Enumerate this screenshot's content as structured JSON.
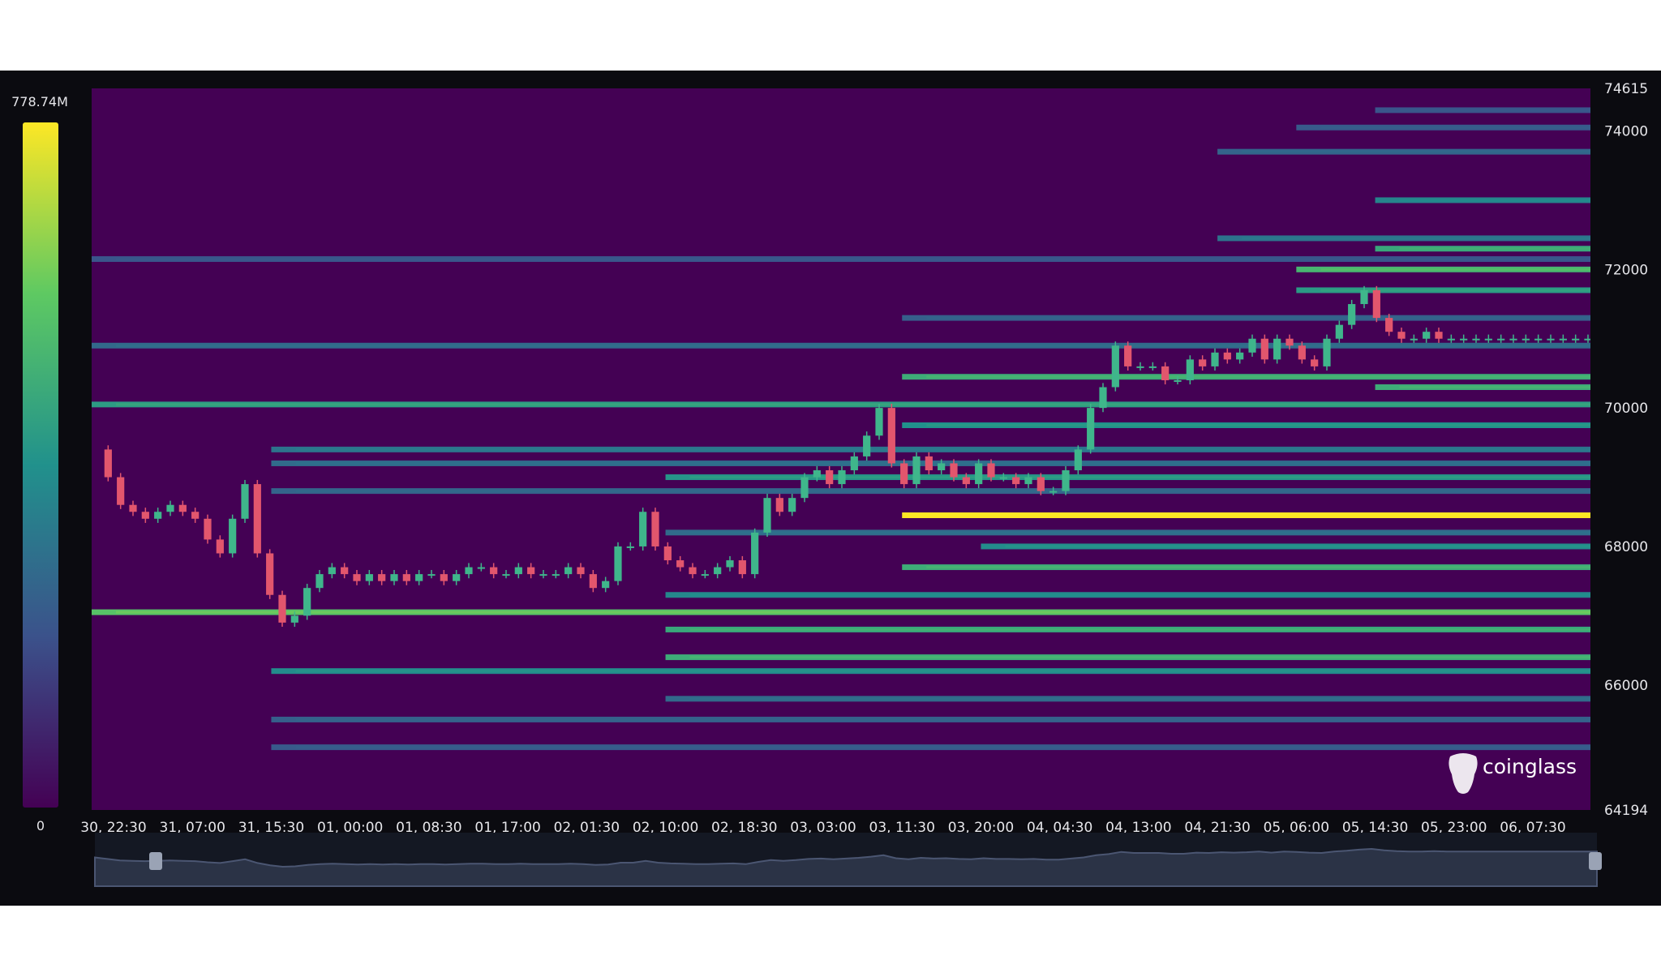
{
  "chart_data": {
    "type": "heatmap",
    "title": "",
    "subtitle": "",
    "xlabel": "",
    "ylabel": "",
    "ylim": [
      64194,
      74615
    ],
    "x_ticks": [
      "30, 22:30",
      "31, 07:00",
      "31, 15:30",
      "01, 00:00",
      "01, 08:30",
      "01, 17:00",
      "02, 01:30",
      "02, 10:00",
      "02, 18:30",
      "03, 03:00",
      "03, 11:30",
      "03, 20:00",
      "04, 04:30",
      "04, 13:00",
      "04, 21:30",
      "05, 06:00",
      "05, 14:30",
      "05, 23:00",
      "06, 07:30"
    ],
    "y_ticks": [
      64194,
      66000,
      68000,
      70000,
      72000,
      74000,
      74615
    ],
    "colorscale": {
      "max_label": "778.74M",
      "min_label": "0",
      "colors": [
        "#440154",
        "#3b528b",
        "#21918c",
        "#5ec962",
        "#fde725"
      ]
    },
    "price_series": [
      69400,
      69000,
      68600,
      68500,
      68400,
      68500,
      68600,
      68500,
      68400,
      68100,
      67900,
      68400,
      68900,
      67900,
      67300,
      66900,
      67000,
      67400,
      67600,
      67700,
      67600,
      67500,
      67600,
      67500,
      67600,
      67500,
      67600,
      67600,
      67500,
      67600,
      67700,
      67700,
      67600,
      67600,
      67700,
      67600,
      67600,
      67600,
      67700,
      67600,
      67400,
      67500,
      68000,
      68000,
      68500,
      68000,
      67800,
      67700,
      67600,
      67600,
      67700,
      67800,
      67600,
      68200,
      68700,
      68500,
      68700,
      69000,
      69100,
      68900,
      69100,
      69300,
      69600,
      70000,
      69200,
      68900,
      69300,
      69100,
      69200,
      69000,
      68900,
      69200,
      69000,
      69000,
      68900,
      69000,
      68800,
      68800,
      69100,
      69400,
      70000,
      70300,
      70900,
      70600,
      70600,
      70600,
      70400,
      70400,
      70700,
      70600,
      70800,
      70700,
      70800,
      71000,
      70700,
      71000,
      70900,
      70700,
      70600,
      71000,
      71200,
      71500,
      71700,
      71300,
      71100,
      71000,
      71000,
      71100,
      71000,
      71000,
      71000,
      71000,
      71000,
      71000,
      71000,
      71000,
      71000,
      71000,
      71000,
      71000,
      71000
    ],
    "liquidation_bands": [
      {
        "price": 68450,
        "from": "03, 11:30",
        "intensity": 1.0
      },
      {
        "price": 70050,
        "from": "30, 22:30",
        "intensity": 0.55
      },
      {
        "price": 67700,
        "from": "03, 11:30",
        "intensity": 0.62
      },
      {
        "price": 67050,
        "from": "30, 22:30",
        "intensity": 0.72
      },
      {
        "price": 66800,
        "from": "02, 10:00",
        "intensity": 0.6
      },
      {
        "price": 66400,
        "from": "02, 10:00",
        "intensity": 0.62
      },
      {
        "price": 66200,
        "from": "31, 15:30",
        "intensity": 0.48
      },
      {
        "price": 70450,
        "from": "03, 11:30",
        "intensity": 0.62
      },
      {
        "price": 69750,
        "from": "03, 11:30",
        "intensity": 0.5
      },
      {
        "price": 70300,
        "from": "05, 14:30",
        "intensity": 0.62
      },
      {
        "price": 72000,
        "from": "05, 06:00",
        "intensity": 0.66
      },
      {
        "price": 72300,
        "from": "05, 14:30",
        "intensity": 0.6
      },
      {
        "price": 71700,
        "from": "05, 06:00",
        "intensity": 0.54
      },
      {
        "price": 73000,
        "from": "05, 14:30",
        "intensity": 0.45
      },
      {
        "price": 72450,
        "from": "04, 21:30",
        "intensity": 0.38
      },
      {
        "price": 69000,
        "from": "02, 10:00",
        "intensity": 0.52
      },
      {
        "price": 68200,
        "from": "02, 10:00",
        "intensity": 0.35
      },
      {
        "price": 68000,
        "from": "03, 20:00",
        "intensity": 0.48
      },
      {
        "price": 67300,
        "from": "02, 10:00",
        "intensity": 0.46
      },
      {
        "price": 65800,
        "from": "02, 10:00",
        "intensity": 0.34
      },
      {
        "price": 65500,
        "from": "31, 15:30",
        "intensity": 0.3
      },
      {
        "price": 65100,
        "from": "31, 15:30",
        "intensity": 0.28
      },
      {
        "price": 69400,
        "from": "31, 15:30",
        "intensity": 0.38
      },
      {
        "price": 69200,
        "from": "31, 15:30",
        "intensity": 0.35
      },
      {
        "price": 68800,
        "from": "31, 15:30",
        "intensity": 0.32
      },
      {
        "price": 70900,
        "from": "30, 22:30",
        "intensity": 0.34
      },
      {
        "price": 71300,
        "from": "03, 11:30",
        "intensity": 0.3
      },
      {
        "price": 72150,
        "from": "30, 22:30",
        "intensity": 0.26
      },
      {
        "price": 73700,
        "from": "04, 21:30",
        "intensity": 0.32
      },
      {
        "price": 74050,
        "from": "05, 06:00",
        "intensity": 0.28
      },
      {
        "price": 74300,
        "from": "05, 14:30",
        "intensity": 0.26
      }
    ]
  },
  "brand": {
    "name": "coinglass"
  },
  "navigator": {
    "fill": "#2b3346",
    "line": "#4b5672"
  },
  "colors": {
    "panel_background": "#0b0b10",
    "heatmap_base": "#440154",
    "candle_up": "#3fb68b",
    "candle_down": "#e2566d",
    "axis_text": "#e6e6ea"
  }
}
